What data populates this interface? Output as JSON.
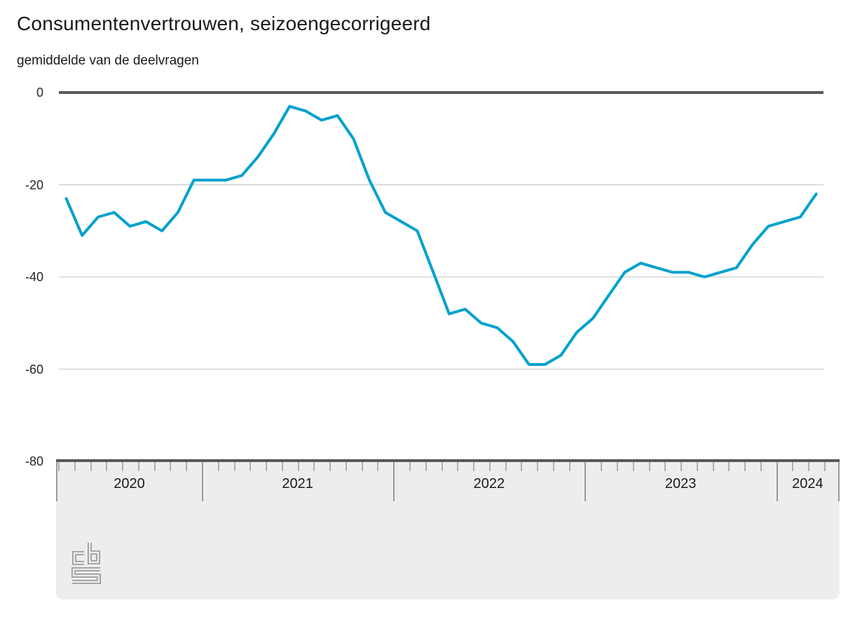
{
  "title": "Consumentenvertrouwen, seizoengecorrigeerd",
  "subtitle": "gemiddelde van de deelvragen",
  "colors": {
    "line": "#00a1cd",
    "gridline": "#cccccc",
    "zero_line": "#58585a",
    "axis_band": "#ededed",
    "month_tick": "#b0b0b0",
    "year_separator": "#9b9b9b",
    "logo": "#9d9d9d",
    "text": "#1a1a1a"
  },
  "y_axis": {
    "tick_labels": [
      "0",
      "-20",
      "-40",
      "-60",
      "-80"
    ],
    "tick_values": [
      0,
      -20,
      -40,
      -60,
      -80
    ]
  },
  "x_axis": {
    "year_labels": [
      "2020",
      "2021",
      "2022",
      "2023",
      "2024"
    ]
  },
  "logo_name": "cbs-logo",
  "chart_data": {
    "type": "line",
    "title": "Consumentenvertrouwen, seizoengecorrigeerd",
    "subtitle": "gemiddelde van de deelvragen",
    "ylim": [
      -80,
      0
    ],
    "grid": true,
    "legend_position": "none",
    "x": [
      "2020-04",
      "2020-05",
      "2020-06",
      "2020-07",
      "2020-08",
      "2020-09",
      "2020-10",
      "2020-11",
      "2020-12",
      "2021-01",
      "2021-02",
      "2021-03",
      "2021-04",
      "2021-05",
      "2021-06",
      "2021-07",
      "2021-08",
      "2021-09",
      "2021-10",
      "2021-11",
      "2021-12",
      "2022-01",
      "2022-02",
      "2022-03",
      "2022-04",
      "2022-05",
      "2022-06",
      "2022-07",
      "2022-08",
      "2022-09",
      "2022-10",
      "2022-11",
      "2022-12",
      "2023-01",
      "2023-02",
      "2023-03",
      "2023-04",
      "2023-05",
      "2023-06",
      "2023-07",
      "2023-08",
      "2023-09",
      "2023-10",
      "2023-11",
      "2023-12",
      "2024-01",
      "2024-02",
      "2024-03"
    ],
    "series": [
      {
        "name": "Consumentenvertrouwen, seizoengecorrigeerd (gemiddelde van de deelvragen)",
        "values": [
          -23,
          -31,
          -27,
          -26,
          -29,
          -28,
          -30,
          -26,
          -19,
          -19,
          -19,
          -18,
          -14,
          -9,
          -3,
          -4,
          -6,
          -5,
          -10,
          -19,
          -26,
          -28,
          -30,
          -39,
          -48,
          -47,
          -50,
          -51,
          -54,
          -59,
          -59,
          -57,
          -52,
          -49,
          -44,
          -39,
          -37,
          -38,
          -39,
          -39,
          -40,
          -39,
          -38,
          -33,
          -29,
          -28,
          -27,
          -22
        ]
      }
    ]
  }
}
